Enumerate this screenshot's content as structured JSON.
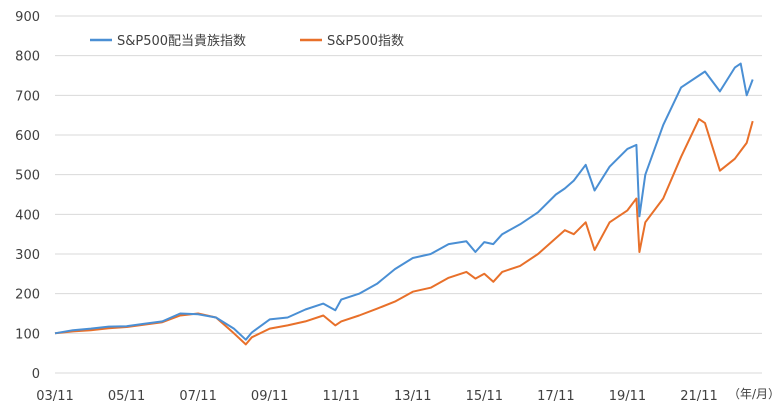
{
  "chart_data": {
    "type": "line",
    "x_unit_label": "（年/月）",
    "ylim": [
      0,
      900
    ],
    "y_ticks": [
      0,
      100,
      200,
      300,
      400,
      500,
      600,
      700,
      800,
      900
    ],
    "x_ticks": [
      "03/11",
      "05/11",
      "07/11",
      "09/11",
      "11/11",
      "13/11",
      "15/11",
      "17/11",
      "19/11",
      "21/11"
    ],
    "grid": "horizontal",
    "legend_position": "top-left",
    "colors": {
      "series0": "#4a8fd4",
      "series1": "#e8702a",
      "grid": "#d9d9d9",
      "axis_text": "#404040"
    },
    "series": [
      {
        "name": "S&P500配当貴族指数",
        "points": [
          [
            "2003-11",
            100
          ],
          [
            "2004-05",
            108
          ],
          [
            "2004-11",
            112
          ],
          [
            "2005-05",
            117
          ],
          [
            "2005-11",
            118
          ],
          [
            "2006-05",
            124
          ],
          [
            "2006-11",
            130
          ],
          [
            "2007-05",
            150
          ],
          [
            "2007-11",
            148
          ],
          [
            "2008-05",
            140
          ],
          [
            "2008-11",
            112
          ],
          [
            "2009-03",
            84
          ],
          [
            "2009-05",
            102
          ],
          [
            "2009-11",
            135
          ],
          [
            "2010-05",
            140
          ],
          [
            "2010-11",
            160
          ],
          [
            "2011-05",
            175
          ],
          [
            "2011-09",
            158
          ],
          [
            "2011-11",
            185
          ],
          [
            "2012-05",
            200
          ],
          [
            "2012-11",
            225
          ],
          [
            "2013-05",
            262
          ],
          [
            "2013-11",
            290
          ],
          [
            "2014-05",
            300
          ],
          [
            "2014-11",
            325
          ],
          [
            "2015-05",
            332
          ],
          [
            "2015-08",
            305
          ],
          [
            "2015-11",
            330
          ],
          [
            "2016-02",
            325
          ],
          [
            "2016-05",
            350
          ],
          [
            "2016-11",
            375
          ],
          [
            "2017-05",
            405
          ],
          [
            "2017-11",
            450
          ],
          [
            "2018-02",
            465
          ],
          [
            "2018-05",
            485
          ],
          [
            "2018-09",
            525
          ],
          [
            "2018-12",
            460
          ],
          [
            "2019-05",
            520
          ],
          [
            "2019-11",
            565
          ],
          [
            "2020-02",
            575
          ],
          [
            "2020-03",
            395
          ],
          [
            "2020-05",
            500
          ],
          [
            "2020-11",
            625
          ],
          [
            "2021-05",
            720
          ],
          [
            "2021-11",
            750
          ],
          [
            "2022-01",
            760
          ],
          [
            "2022-06",
            710
          ],
          [
            "2022-11",
            770
          ],
          [
            "2023-01",
            780
          ],
          [
            "2023-03",
            700
          ],
          [
            "2023-05",
            740
          ]
        ]
      },
      {
        "name": "S&P500指数",
        "points": [
          [
            "2003-11",
            100
          ],
          [
            "2004-05",
            105
          ],
          [
            "2004-11",
            108
          ],
          [
            "2005-05",
            113
          ],
          [
            "2005-11",
            116
          ],
          [
            "2006-05",
            122
          ],
          [
            "2006-11",
            128
          ],
          [
            "2007-05",
            145
          ],
          [
            "2007-11",
            150
          ],
          [
            "2008-05",
            140
          ],
          [
            "2008-11",
            100
          ],
          [
            "2009-03",
            72
          ],
          [
            "2009-05",
            90
          ],
          [
            "2009-11",
            112
          ],
          [
            "2010-05",
            120
          ],
          [
            "2010-11",
            130
          ],
          [
            "2011-05",
            145
          ],
          [
            "2011-09",
            120
          ],
          [
            "2011-11",
            130
          ],
          [
            "2012-05",
            145
          ],
          [
            "2012-11",
            162
          ],
          [
            "2013-05",
            180
          ],
          [
            "2013-11",
            205
          ],
          [
            "2014-05",
            215
          ],
          [
            "2014-11",
            240
          ],
          [
            "2015-05",
            255
          ],
          [
            "2015-08",
            238
          ],
          [
            "2015-11",
            250
          ],
          [
            "2016-02",
            230
          ],
          [
            "2016-05",
            255
          ],
          [
            "2016-11",
            270
          ],
          [
            "2017-05",
            300
          ],
          [
            "2017-11",
            340
          ],
          [
            "2018-02",
            360
          ],
          [
            "2018-05",
            350
          ],
          [
            "2018-09",
            380
          ],
          [
            "2018-12",
            310
          ],
          [
            "2019-05",
            380
          ],
          [
            "2019-11",
            410
          ],
          [
            "2020-02",
            440
          ],
          [
            "2020-03",
            305
          ],
          [
            "2020-05",
            380
          ],
          [
            "2020-11",
            440
          ],
          [
            "2021-05",
            545
          ],
          [
            "2021-11",
            640
          ],
          [
            "2022-01",
            630
          ],
          [
            "2022-06",
            510
          ],
          [
            "2022-11",
            540
          ],
          [
            "2023-01",
            560
          ],
          [
            "2023-03",
            580
          ],
          [
            "2023-05",
            635
          ]
        ]
      }
    ]
  }
}
